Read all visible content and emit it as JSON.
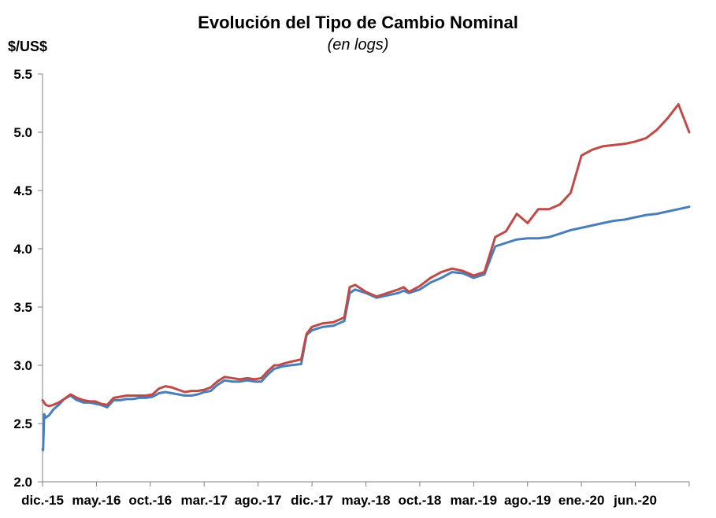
{
  "chart_data": {
    "type": "line",
    "title": "Evolución del Tipo de Cambio Nominal",
    "subtitle": "(en logs)",
    "ylabel": "$/US$",
    "ylim": [
      2.0,
      5.5
    ],
    "yticks": [
      "2.0",
      "2.5",
      "3.0",
      "3.5",
      "4.0",
      "4.5",
      "5.0",
      "5.5"
    ],
    "xticks": [
      "dic.-15",
      "may.-16",
      "oct.-16",
      "mar.-17",
      "ago.-17",
      "dic.-17",
      "may.-18",
      "oct.-18",
      "mar.-19",
      "ago.-19",
      "ene.-20",
      "jun.-20"
    ],
    "grid": false,
    "legend": "none",
    "series": [
      {
        "color": "#4a7ebb",
        "x": [
          0,
          0.05,
          0.15,
          0.3,
          0.6,
          1.0,
          1.5,
          2.0,
          2.6,
          3.2,
          3.8,
          4.4,
          4.9,
          5.4,
          6.0,
          6.6,
          7.2,
          7.8,
          8.4,
          9.0,
          9.6,
          10.2,
          10.8,
          11.4,
          12.0,
          12.6,
          13.2,
          13.8,
          14.4,
          15.0,
          15.6,
          16.2,
          16.9,
          17.6,
          18.3,
          19.0,
          19.7,
          20.3,
          20.9,
          21.5,
          21.9,
          22.2,
          23.0,
          24.0,
          24.5,
          25.0,
          26.0,
          27.0,
          28.0,
          28.5,
          29.0,
          30.0,
          31.0,
          32.0,
          33.0,
          33.5,
          34.0,
          35.0,
          36.0,
          37.0,
          38.0,
          39.0,
          40.0,
          41.0,
          42.0,
          43.0,
          44.0,
          45.0,
          46.0,
          47.0,
          48.0,
          49.0,
          50.0,
          51.0,
          52.0,
          53.0,
          54.0,
          55.0,
          56.0,
          57.0,
          58.0,
          59.0,
          60.0
        ],
        "values": [
          2.28,
          2.27,
          2.58,
          2.55,
          2.57,
          2.62,
          2.66,
          2.71,
          2.74,
          2.7,
          2.68,
          2.68,
          2.67,
          2.66,
          2.64,
          2.7,
          2.7,
          2.71,
          2.71,
          2.72,
          2.72,
          2.73,
          2.76,
          2.77,
          2.76,
          2.75,
          2.74,
          2.74,
          2.75,
          2.77,
          2.78,
          2.83,
          2.87,
          2.86,
          2.86,
          2.87,
          2.86,
          2.86,
          2.92,
          2.97,
          2.98,
          2.99,
          3.0,
          3.01,
          3.26,
          3.3,
          3.33,
          3.34,
          3.38,
          3.62,
          3.65,
          3.62,
          3.58,
          3.6,
          3.62,
          3.64,
          3.62,
          3.65,
          3.71,
          3.75,
          3.8,
          3.79,
          3.75,
          3.78,
          4.02,
          4.05,
          4.08,
          4.09,
          4.09,
          4.1,
          4.13,
          4.16,
          4.18,
          4.2,
          4.22,
          4.24,
          4.25,
          4.27,
          4.29,
          4.3,
          4.32,
          4.34,
          4.36
        ]
      },
      {
        "color": "#be4b48",
        "x": [
          0,
          0.3,
          0.6,
          1.0,
          1.5,
          2.0,
          2.6,
          3.2,
          3.8,
          4.4,
          4.9,
          5.4,
          6.0,
          6.6,
          7.2,
          7.8,
          8.4,
          9.0,
          9.6,
          10.2,
          10.8,
          11.4,
          12.0,
          12.6,
          13.2,
          13.8,
          14.4,
          15.0,
          15.6,
          16.2,
          16.9,
          17.6,
          18.3,
          19.0,
          19.7,
          20.3,
          20.9,
          21.5,
          21.9,
          22.2,
          23.0,
          24.0,
          24.5,
          25.0,
          26.0,
          27.0,
          28.0,
          28.5,
          29.0,
          30.0,
          31.0,
          32.0,
          33.0,
          33.5,
          34.0,
          35.0,
          36.0,
          37.0,
          38.0,
          39.0,
          40.0,
          41.0,
          42.0,
          43.0,
          44.0,
          45.0,
          46.0,
          47.0,
          48.0,
          49.0,
          50.0,
          51.0,
          52.0,
          53.0,
          54.0,
          55.0,
          56.0,
          57.0,
          58.0,
          59.0,
          60.0
        ],
        "values": [
          2.7,
          2.66,
          2.65,
          2.66,
          2.68,
          2.71,
          2.75,
          2.72,
          2.7,
          2.69,
          2.69,
          2.67,
          2.66,
          2.72,
          2.73,
          2.74,
          2.74,
          2.74,
          2.74,
          2.75,
          2.8,
          2.82,
          2.81,
          2.79,
          2.77,
          2.78,
          2.78,
          2.79,
          2.81,
          2.86,
          2.9,
          2.89,
          2.88,
          2.89,
          2.88,
          2.89,
          2.95,
          3.0,
          3.0,
          3.01,
          3.03,
          3.05,
          3.27,
          3.33,
          3.36,
          3.37,
          3.41,
          3.67,
          3.69,
          3.63,
          3.59,
          3.62,
          3.65,
          3.67,
          3.63,
          3.68,
          3.75,
          3.8,
          3.83,
          3.81,
          3.77,
          3.8,
          4.1,
          4.15,
          4.3,
          4.22,
          4.34,
          4.34,
          4.38,
          4.48,
          4.8,
          4.85,
          4.88,
          4.89,
          4.9,
          4.92,
          4.95,
          5.02,
          5.12,
          5.24,
          5.0
        ]
      }
    ]
  }
}
